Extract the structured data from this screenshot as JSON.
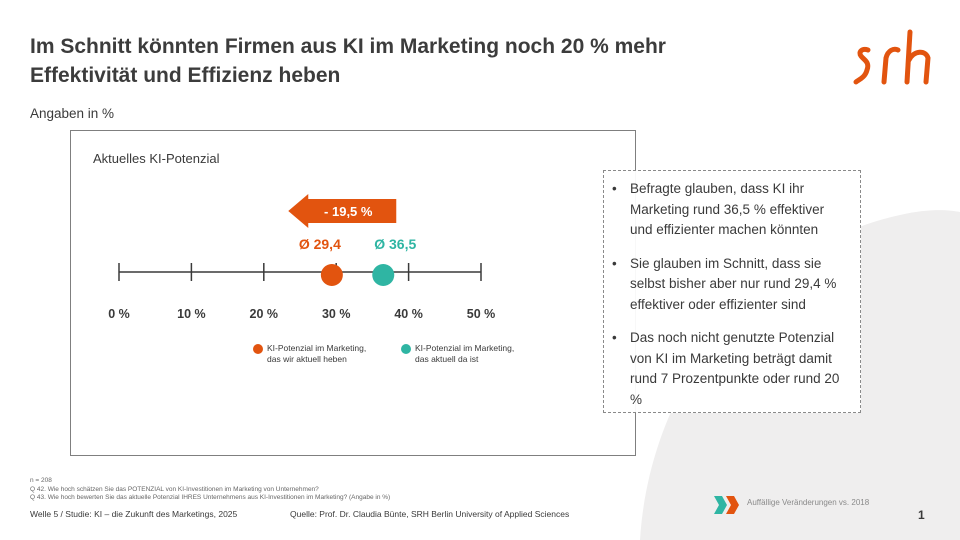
{
  "slide": {
    "title_line1": "Im Schnitt könnten Firmen aus KI im Marketing noch 20 % mehr",
    "title_line2": "Effektivität und Effizienz heben",
    "unit_note": "Angaben in %",
    "logo_text": "srh"
  },
  "colors": {
    "accent_orange": "#e2540f",
    "accent_teal": "#2fb5a3",
    "text": "#3a3a3a",
    "bg_shape": "#efeeee"
  },
  "chart_data": {
    "type": "scatter",
    "title": "Aktuelles KI-Potenzial",
    "x_range": [
      0,
      50
    ],
    "ticks": [
      0,
      10,
      20,
      30,
      40,
      50
    ],
    "tick_labels": [
      "0 %",
      "10 %",
      "20 %",
      "30 %",
      "40 %",
      "50 %"
    ],
    "series": [
      {
        "name": "KI-Potenzial im Marketing, das wir aktuell heben",
        "value": 29.4,
        "label": "Ø 29,4",
        "color": "#e2540f"
      },
      {
        "name": "KI-Potenzial im Marketing, das aktuell da ist",
        "value": 36.5,
        "label": "Ø 36,5",
        "color": "#2fb5a3"
      }
    ],
    "annotation": {
      "text": "- 19,5 %",
      "direction": "left",
      "color": "#e2540f"
    },
    "legend": [
      {
        "line1": "KI-Potenzial im Marketing,",
        "line2": "das wir aktuell heben",
        "color": "#e2540f"
      },
      {
        "line1": "KI-Potenzial im Marketing,",
        "line2": "das aktuell da ist",
        "color": "#2fb5a3"
      }
    ]
  },
  "notes": [
    "Befragte glauben, dass KI ihr Marketing rund 36,5 % effektiver und effizienter machen könnten",
    "Sie glauben im Schnitt, dass sie selbst bisher aber nur rund 29,4 % effektiver oder effizienter sind",
    "Das noch nicht genutzte Potenzial von KI im Marketing beträgt damit rund 7 Prozentpunkte oder rund 20 %"
  ],
  "bullet_char": "•",
  "footnotes": [
    "n = 208",
    "Q 42. Wie hoch schätzen Sie das POTENZIAL von KI-Investitionen im Marketing von Unternehmen?",
    "Q 43. Wie hoch bewerten Sie das aktuelle Potenzial IHRES Unternehmens aus KI-Investitionen im Marketing? (Angabe in %)"
  ],
  "footer": {
    "wave": "Welle 5 / Studie: KI – die Zukunft des Marketings, 2025",
    "source": "Quelle: Prof. Dr. Claudia Bünte, SRH Berlin University of Applied Sciences",
    "change_note": "Auffällige Veränderungen vs. 2018",
    "page_number": "1"
  }
}
